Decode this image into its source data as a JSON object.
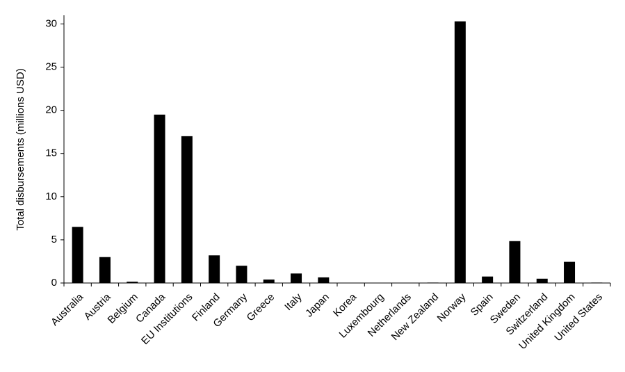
{
  "chart_data": {
    "type": "bar",
    "y_label": "Total disbursements (millions USD)",
    "categories": [
      "Australia",
      "Austria",
      "Belgium",
      "Canada",
      "EU Institutions",
      "Finland",
      "Germany",
      "Greece",
      "Italy",
      "Japan",
      "Korea",
      "Luxembourg",
      "Netherlands",
      "New Zealand",
      "Norway",
      "Spain",
      "Sweden",
      "Switzerland",
      "United Kingdom",
      "United States"
    ],
    "values": [
      6.5,
      3.0,
      0.15,
      19.5,
      17.0,
      3.2,
      2.0,
      0.4,
      1.1,
      0.65,
      0,
      0,
      0,
      0.05,
      30.3,
      0.75,
      4.85,
      0.5,
      2.45,
      0.05
    ],
    "color": "#000000",
    "ylim": [
      0,
      31
    ],
    "yticks": [
      0,
      5,
      10,
      15,
      20,
      25,
      30
    ],
    "grid": false
  }
}
